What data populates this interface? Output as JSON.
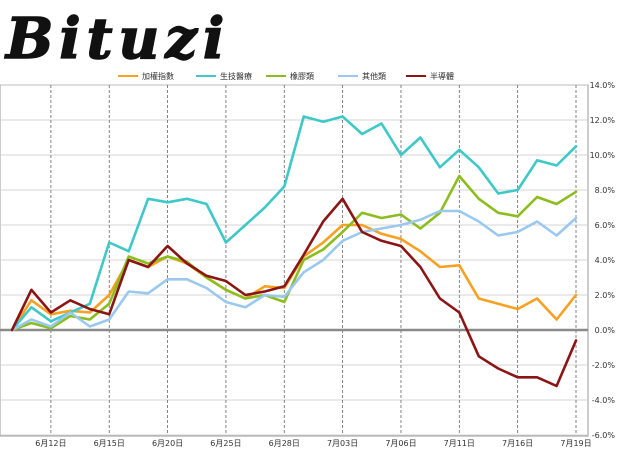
{
  "brand": {
    "logo_text": "Bituzi"
  },
  "chart_data": {
    "type": "line",
    "title": "",
    "xlabel": "",
    "ylabel": "",
    "ylim": [
      -6,
      14
    ],
    "y_ticks": [
      "14.0%",
      "12.0%",
      "10.0%",
      "8.0%",
      "6.0%",
      "4.0%",
      "2.0%",
      "0.0%",
      "-2.0%",
      "-4.0%",
      "-6.0%"
    ],
    "x_ticks": [
      "6月12日",
      "6月15日",
      "6月20日",
      "6月25日",
      "6月28日",
      "7月03日",
      "7月06日",
      "7月11日",
      "7月16日",
      "7月19日"
    ],
    "x_tick_index": [
      2,
      5,
      8,
      11,
      14,
      17,
      20,
      23,
      26,
      29
    ],
    "grid": true,
    "legend_position": "top",
    "zero_line": true,
    "series": [
      {
        "name": "加權指數",
        "color": "#f7a021",
        "values": [
          0,
          1.7,
          0.9,
          1.1,
          1.0,
          2.0,
          4.0,
          3.6,
          4.2,
          3.8,
          3.0,
          2.3,
          1.8,
          2.5,
          2.4,
          4.2,
          5.0,
          6.0,
          6.0,
          5.5,
          5.2,
          4.5,
          3.6,
          3.7,
          1.8,
          1.5,
          1.2,
          1.8,
          0.6,
          2.0
        ]
      },
      {
        "name": "生技醫療",
        "color": "#3ec8c8",
        "values": [
          0,
          1.3,
          0.5,
          1.0,
          1.5,
          5.0,
          4.5,
          7.5,
          7.3,
          7.5,
          7.2,
          5.0,
          6.0,
          7.0,
          8.2,
          12.2,
          11.9,
          12.2,
          11.2,
          11.8,
          10.0,
          11.0,
          9.3,
          10.3,
          9.3,
          7.8,
          8.0,
          9.7,
          9.4,
          10.5
        ]
      },
      {
        "name": "橡膠類",
        "color": "#8cbd1e",
        "values": [
          0,
          0.4,
          0.1,
          0.8,
          0.6,
          1.5,
          4.2,
          3.8,
          4.2,
          3.9,
          3.0,
          2.3,
          1.8,
          2.0,
          1.6,
          4.0,
          4.6,
          5.6,
          6.7,
          6.4,
          6.6,
          5.8,
          6.7,
          8.8,
          7.5,
          6.7,
          6.5,
          7.6,
          7.2,
          7.9
        ]
      },
      {
        "name": "其他類",
        "color": "#9ac8ee",
        "values": [
          0,
          0.6,
          0.2,
          1.0,
          0.2,
          0.6,
          2.2,
          2.1,
          2.9,
          2.9,
          2.4,
          1.6,
          1.3,
          2.0,
          1.9,
          3.3,
          4.0,
          5.1,
          5.6,
          5.8,
          6.0,
          6.3,
          6.8,
          6.8,
          6.2,
          5.4,
          5.6,
          6.2,
          5.4,
          6.4
        ]
      },
      {
        "name": "半導體",
        "color": "#8b1414",
        "values": [
          0,
          2.3,
          1.0,
          1.7,
          1.2,
          0.9,
          4.0,
          3.6,
          4.8,
          3.8,
          3.1,
          2.8,
          2.0,
          2.2,
          2.5,
          4.3,
          6.2,
          7.5,
          5.6,
          5.1,
          4.8,
          3.6,
          1.8,
          1.0,
          -1.5,
          -2.2,
          -2.7,
          -2.7,
          -3.2,
          -0.6
        ]
      }
    ]
  }
}
